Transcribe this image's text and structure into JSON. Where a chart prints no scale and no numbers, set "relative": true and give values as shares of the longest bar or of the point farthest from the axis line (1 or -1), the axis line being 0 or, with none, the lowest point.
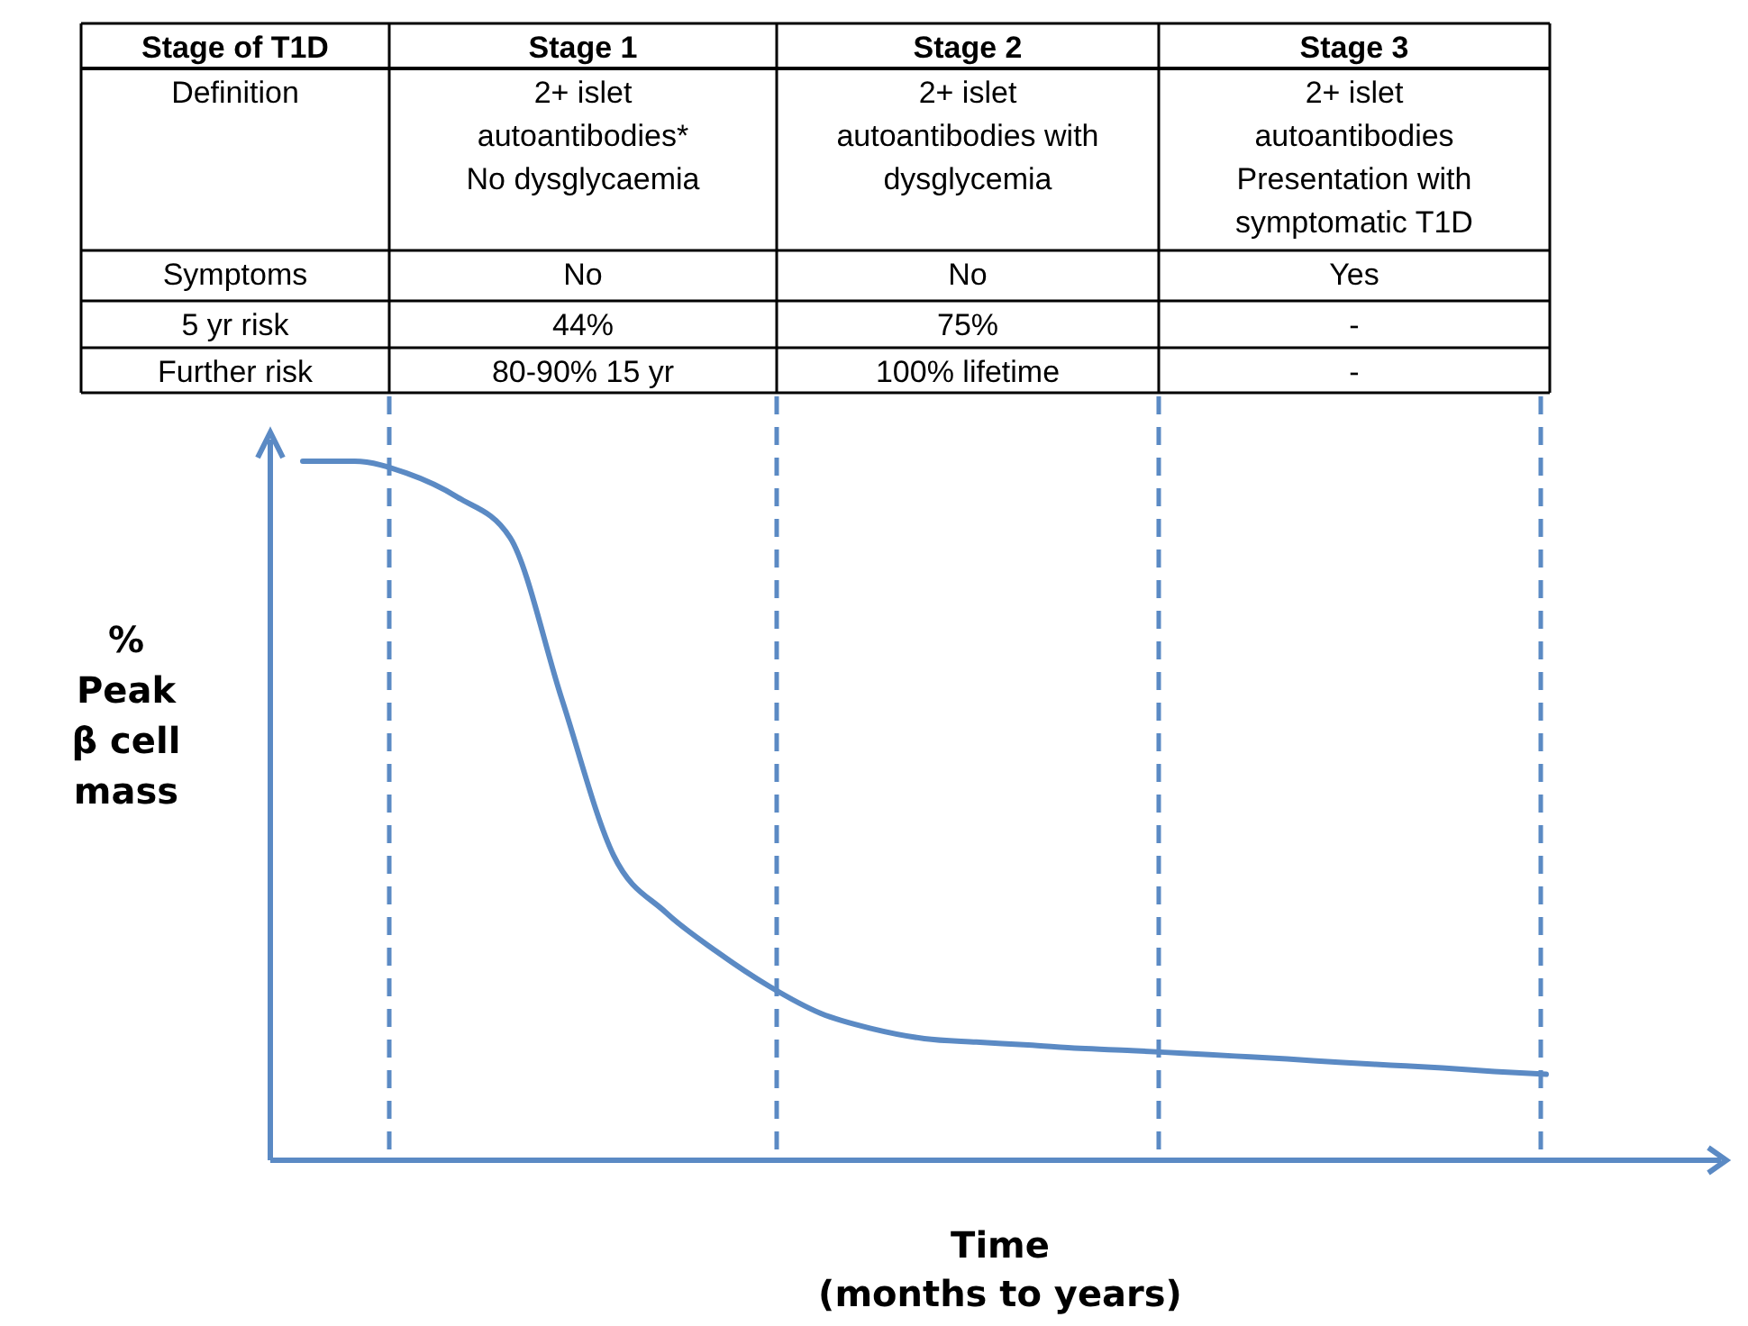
{
  "chart_data": {
    "type": "line",
    "relative": true,
    "categories": [
      null,
      null,
      null,
      null,
      null,
      null,
      null,
      null,
      null,
      null,
      null,
      null,
      null,
      null,
      null,
      null,
      null,
      null,
      null,
      null,
      null,
      null,
      null,
      null,
      null
    ],
    "series": [
      {
        "color": "#5b8ac4",
        "values": [
          1,
          1,
          0.983,
          0.948,
          0.891,
          0.66,
          0.436,
          0.355,
          0.298,
          0.249,
          0.21,
          0.188,
          0.174,
          0.169,
          0.165,
          0.16,
          0.157,
          0.153,
          0.149,
          0.145,
          0.14,
          0.136,
          0.132,
          0.127,
          0.123
        ]
      }
    ],
    "ylabel": "%\nPeak\nβ cell\nmass",
    "xlabel": "Time\n(months to years)",
    "annotations": [
      "Stage of T1D",
      "Stage 1",
      "Stage 2",
      "Stage 3",
      "Definition",
      "2+ islet\nautoantibodies*\nNo dysglycaemia",
      "2+ islet\nautoantibodies with\ndysglycemia",
      "2+ islet\nautoantibodies\nPresentation with\nsymptomatic T1D",
      "Symptoms",
      "No",
      "No",
      "Yes",
      "5 yr risk",
      "44%",
      "75%",
      "-",
      "Further risk",
      "80-90% 15 yr",
      "100% lifetime",
      "-"
    ]
  }
}
